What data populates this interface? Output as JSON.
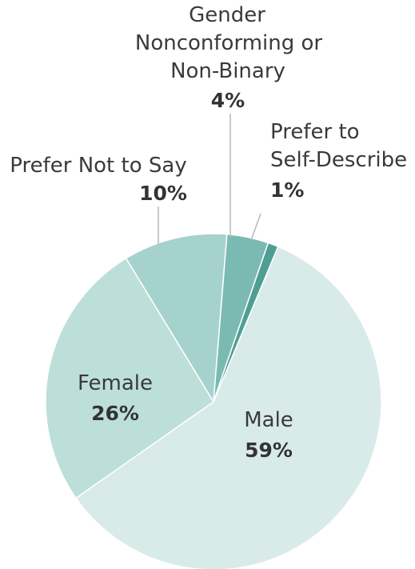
{
  "chart_data": {
    "type": "pie",
    "title": "",
    "slices": [
      {
        "label": "Male",
        "value": 59,
        "value_label": "59%",
        "color": "#d9ebe8"
      },
      {
        "label": "Female",
        "value": 26,
        "value_label": "26%",
        "color": "#bcdfda"
      },
      {
        "label": "Prefer Not to Say",
        "value": 10,
        "value_label": "10%",
        "color": "#a5d2cc"
      },
      {
        "label": "Gender Nonconforming or Non-Binary",
        "value": 4,
        "value_label": "4%",
        "color": "#7bbab2"
      },
      {
        "label": "Prefer to Self-Describe",
        "value": 1,
        "value_label": "1%",
        "color": "#4f9e94"
      }
    ]
  },
  "labels": {
    "male": {
      "name": "Male",
      "pct": "59%"
    },
    "female": {
      "name": "Female",
      "pct": "26%"
    },
    "prefer_not": {
      "name": "Prefer Not to Say",
      "pct": "10%"
    },
    "gnc": {
      "name_lines": [
        "Gender",
        "Nonconforming or",
        "Non-Binary"
      ],
      "pct": "4%"
    },
    "self_describe": {
      "name_lines": [
        "Prefer to",
        "Self-Describe"
      ],
      "pct": "1%"
    }
  }
}
